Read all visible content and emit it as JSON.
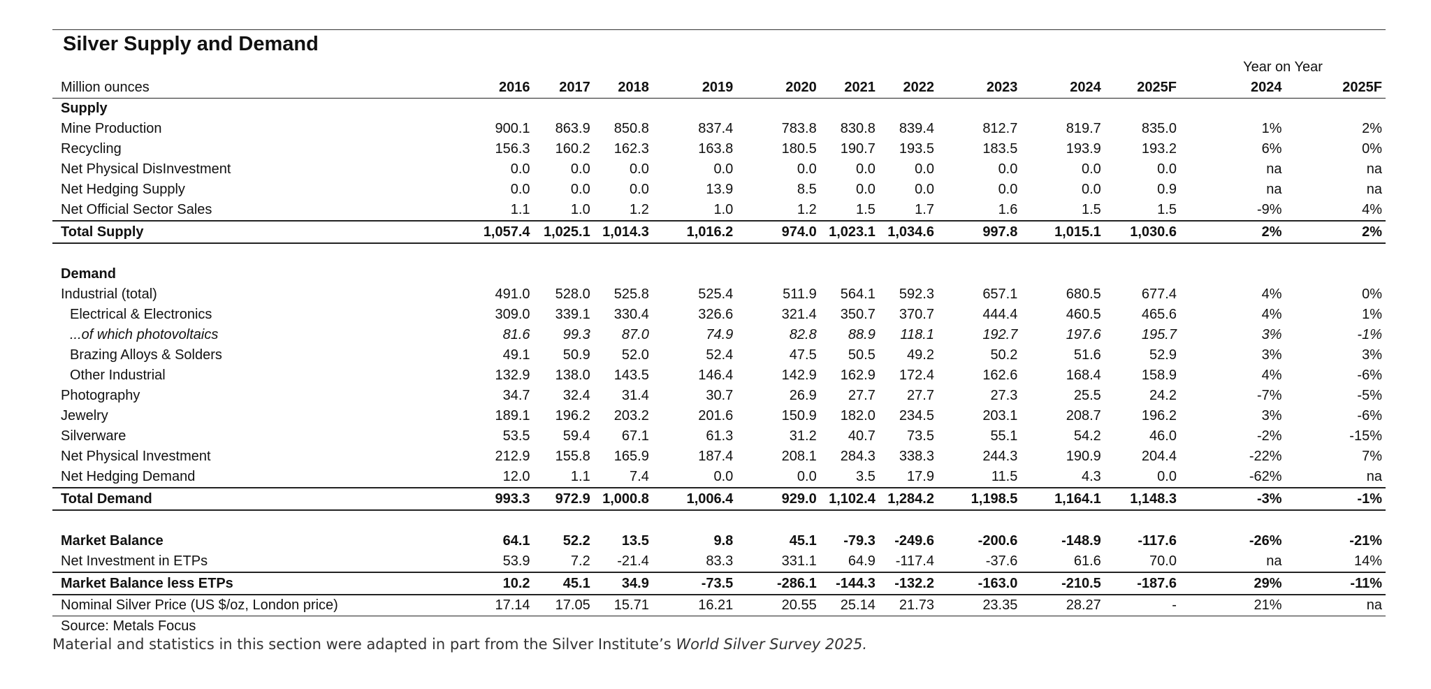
{
  "title": "Silver Supply and Demand",
  "units_label": "Million ounces",
  "yoy_label": "Year on Year",
  "years": [
    "2016",
    "2017",
    "2018",
    "2019",
    "2020",
    "2021",
    "2022",
    "2023",
    "2024",
    "2025F"
  ],
  "yoy_years": [
    "2024",
    "2025F"
  ],
  "sections": {
    "supply": "Supply",
    "demand": "Demand"
  },
  "rows": [
    {
      "label": "Mine Production",
      "values": [
        "900.1",
        "863.9",
        "850.8",
        "837.4",
        "783.8",
        "830.8",
        "839.4",
        "812.7",
        "819.7",
        "835.0"
      ],
      "yoy": [
        "1%",
        "2%"
      ]
    },
    {
      "label": "Recycling",
      "values": [
        "156.3",
        "160.2",
        "162.3",
        "163.8",
        "180.5",
        "190.7",
        "193.5",
        "183.5",
        "193.9",
        "193.2"
      ],
      "yoy": [
        "6%",
        "0%"
      ]
    },
    {
      "label": "Net Physical DisInvestment",
      "values": [
        "0.0",
        "0.0",
        "0.0",
        "0.0",
        "0.0",
        "0.0",
        "0.0",
        "0.0",
        "0.0",
        "0.0"
      ],
      "yoy": [
        "na",
        "na"
      ]
    },
    {
      "label": "Net Hedging Supply",
      "values": [
        "0.0",
        "0.0",
        "0.0",
        "13.9",
        "8.5",
        "0.0",
        "0.0",
        "0.0",
        "0.0",
        "0.9"
      ],
      "yoy": [
        "na",
        "na"
      ]
    },
    {
      "label": "Net Official Sector Sales",
      "values": [
        "1.1",
        "1.0",
        "1.2",
        "1.0",
        "1.2",
        "1.5",
        "1.7",
        "1.6",
        "1.5",
        "1.5"
      ],
      "yoy": [
        "-9%",
        "4%"
      ]
    },
    {
      "label": "Total Supply",
      "values": [
        "1,057.4",
        "1,025.1",
        "1,014.3",
        "1,016.2",
        "974.0",
        "1,023.1",
        "1,034.6",
        "997.8",
        "1,015.1",
        "1,030.6"
      ],
      "yoy": [
        "2%",
        "2%"
      ]
    },
    {
      "label": "Industrial (total)",
      "values": [
        "491.0",
        "528.0",
        "525.8",
        "525.4",
        "511.9",
        "564.1",
        "592.3",
        "657.1",
        "680.5",
        "677.4"
      ],
      "yoy": [
        "4%",
        "0%"
      ]
    },
    {
      "label": "Electrical & Electronics",
      "values": [
        "309.0",
        "339.1",
        "330.4",
        "326.6",
        "321.4",
        "350.7",
        "370.7",
        "444.4",
        "460.5",
        "465.6"
      ],
      "yoy": [
        "4%",
        "1%"
      ]
    },
    {
      "label": "...of which photovoltaics",
      "values": [
        "81.6",
        "99.3",
        "87.0",
        "74.9",
        "82.8",
        "88.9",
        "118.1",
        "192.7",
        "197.6",
        "195.7"
      ],
      "yoy": [
        "3%",
        "-1%"
      ]
    },
    {
      "label": "Brazing Alloys & Solders",
      "values": [
        "49.1",
        "50.9",
        "52.0",
        "52.4",
        "47.5",
        "50.5",
        "49.2",
        "50.2",
        "51.6",
        "52.9"
      ],
      "yoy": [
        "3%",
        "3%"
      ]
    },
    {
      "label": "Other Industrial",
      "values": [
        "132.9",
        "138.0",
        "143.5",
        "146.4",
        "142.9",
        "162.9",
        "172.4",
        "162.6",
        "168.4",
        "158.9"
      ],
      "yoy": [
        "4%",
        "-6%"
      ]
    },
    {
      "label": "Photography",
      "values": [
        "34.7",
        "32.4",
        "31.4",
        "30.7",
        "26.9",
        "27.7",
        "27.7",
        "27.3",
        "25.5",
        "24.2"
      ],
      "yoy": [
        "-7%",
        "-5%"
      ]
    },
    {
      "label": "Jewelry",
      "values": [
        "189.1",
        "196.2",
        "203.2",
        "201.6",
        "150.9",
        "182.0",
        "234.5",
        "203.1",
        "208.7",
        "196.2"
      ],
      "yoy": [
        "3%",
        "-6%"
      ]
    },
    {
      "label": "Silverware",
      "values": [
        "53.5",
        "59.4",
        "67.1",
        "61.3",
        "31.2",
        "40.7",
        "73.5",
        "55.1",
        "54.2",
        "46.0"
      ],
      "yoy": [
        "-2%",
        "-15%"
      ]
    },
    {
      "label": "Net Physical Investment",
      "values": [
        "212.9",
        "155.8",
        "165.9",
        "187.4",
        "208.1",
        "284.3",
        "338.3",
        "244.3",
        "190.9",
        "204.4"
      ],
      "yoy": [
        "-22%",
        "7%"
      ]
    },
    {
      "label": "Net Hedging Demand",
      "values": [
        "12.0",
        "1.1",
        "7.4",
        "0.0",
        "0.0",
        "3.5",
        "17.9",
        "11.5",
        "4.3",
        "0.0"
      ],
      "yoy": [
        "-62%",
        "na"
      ]
    },
    {
      "label": "Total Demand",
      "values": [
        "993.3",
        "972.9",
        "1,000.8",
        "1,006.4",
        "929.0",
        "1,102.4",
        "1,284.2",
        "1,198.5",
        "1,164.1",
        "1,148.3"
      ],
      "yoy": [
        "-3%",
        "-1%"
      ]
    },
    {
      "label": "Market Balance",
      "values": [
        "64.1",
        "52.2",
        "13.5",
        "9.8",
        "45.1",
        "-79.3",
        "-249.6",
        "-200.6",
        "-148.9",
        "-117.6"
      ],
      "yoy": [
        "-26%",
        "-21%"
      ]
    },
    {
      "label": "Net Investment in ETPs",
      "values": [
        "53.9",
        "7.2",
        "-21.4",
        "83.3",
        "331.1",
        "64.9",
        "-117.4",
        "-37.6",
        "61.6",
        "70.0"
      ],
      "yoy": [
        "na",
        "14%"
      ]
    },
    {
      "label": "Market Balance less ETPs",
      "values": [
        "10.2",
        "45.1",
        "34.9",
        "-73.5",
        "-286.1",
        "-144.3",
        "-132.2",
        "-163.0",
        "-210.5",
        "-187.6"
      ],
      "yoy": [
        "29%",
        "-11%"
      ]
    },
    {
      "label": "Nominal Silver Price (US $/oz, London price)",
      "values": [
        "17.14",
        "17.05",
        "15.71",
        "16.21",
        "20.55",
        "25.14",
        "21.73",
        "23.35",
        "28.27",
        "-"
      ],
      "yoy": [
        "21%",
        "na"
      ]
    }
  ],
  "source": "Source: Metals Focus",
  "footnote": {
    "text": "Material and statistics in this section were adapted in part from the Silver Institute’s ",
    "italic": "World Silver Survey 2025."
  }
}
